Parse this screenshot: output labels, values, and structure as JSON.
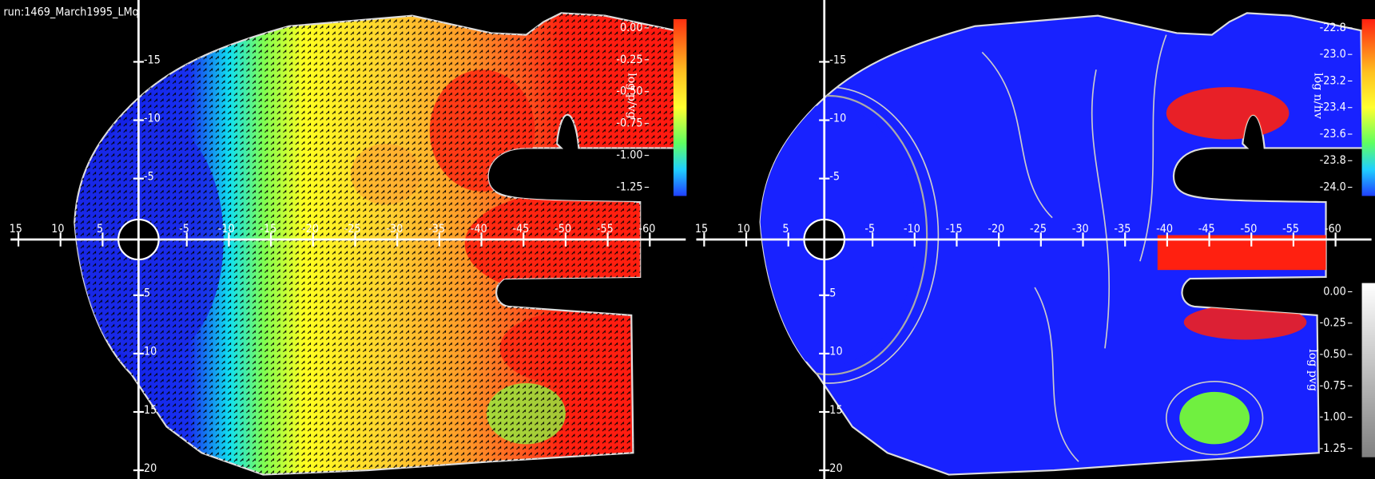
{
  "run_label": "run:1469_March1995_LMq",
  "panels": [
    {
      "x_ticks": [
        "15",
        "10",
        "5",
        "-5",
        "-10",
        "-15",
        "-20",
        "-25",
        "-30",
        "-35",
        "-40",
        "-45",
        "-50",
        "-55",
        "-60"
      ],
      "y_ticks": [
        "-15",
        "-10",
        "-5",
        "5",
        "10",
        "15",
        "20"
      ],
      "colorbars": [
        {
          "label": "log p/vg",
          "ticks": [
            "0.00",
            "-0.25",
            "-0.50",
            "-0.75",
            "-1.00",
            "-1.25"
          ]
        }
      ]
    },
    {
      "x_ticks": [
        "15",
        "10",
        "5",
        "-5",
        "-10",
        "-15",
        "-20",
        "-25",
        "-30",
        "-35",
        "-40",
        "-45",
        "-50",
        "-55",
        "-60"
      ],
      "y_ticks": [
        "-15",
        "-10",
        "-5",
        "5",
        "10",
        "15",
        "20"
      ],
      "colorbars": [
        {
          "label": "log n/nv",
          "ticks": [
            "-22.8",
            "-23.0",
            "-23.2",
            "-23.4",
            "-23.6",
            "-23.8",
            "-24.0"
          ]
        },
        {
          "label": "log pvg",
          "ticks": [
            "0.00",
            "-0.25",
            "-0.50",
            "-0.75",
            "-1.00",
            "-1.25"
          ]
        }
      ]
    }
  ]
}
